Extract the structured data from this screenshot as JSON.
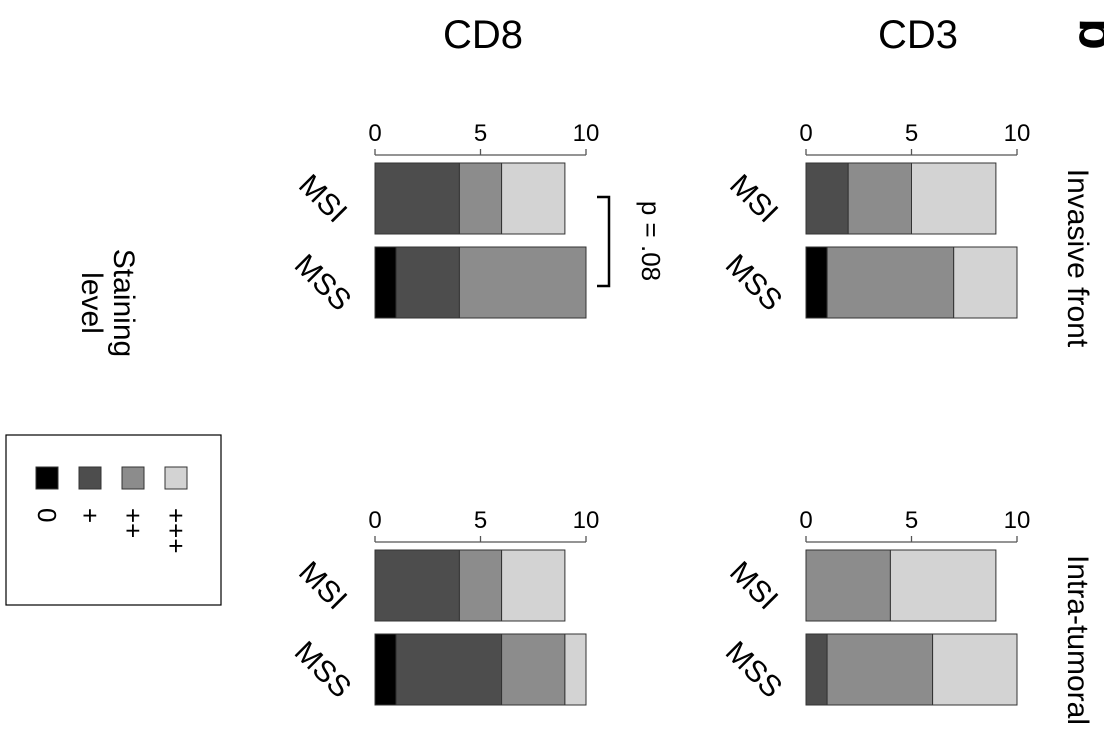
{
  "column_titles": [
    "CD8",
    "CD3"
  ],
  "row_titles": [
    "Invasive front",
    "Intra-tumoral"
  ],
  "panel_letter": "b",
  "legend": {
    "title": "Staining level",
    "title_lines": [
      "Staining",
      "level"
    ],
    "items": [
      {
        "label": "0",
        "color": "#000000"
      },
      {
        "label": "+",
        "color": "#4d4d4d"
      },
      {
        "label": "++",
        "color": "#8c8c8c"
      },
      {
        "label": "+++",
        "color": "#d3d3d3"
      }
    ]
  },
  "chart_data": [
    {
      "type": "bar",
      "stacked": true,
      "orientation": "horizontal",
      "marker": "CD8",
      "region": "Invasive front",
      "categories": [
        "MSI",
        "MSS"
      ],
      "xlim": [
        0,
        10
      ],
      "ticks": [
        0,
        5,
        10
      ],
      "series": [
        {
          "name": "0",
          "values": [
            0,
            1
          ]
        },
        {
          "name": "+",
          "values": [
            4,
            3
          ]
        },
        {
          "name": "++",
          "values": [
            2,
            6
          ]
        },
        {
          "name": "+++",
          "values": [
            3,
            0
          ]
        }
      ],
      "annotation": "p = .08"
    },
    {
      "type": "bar",
      "stacked": true,
      "orientation": "horizontal",
      "marker": "CD3",
      "region": "Invasive front",
      "categories": [
        "MSI",
        "MSS"
      ],
      "xlim": [
        0,
        10
      ],
      "ticks": [
        0,
        5,
        10
      ],
      "series": [
        {
          "name": "0",
          "values": [
            0,
            1
          ]
        },
        {
          "name": "+",
          "values": [
            2,
            0
          ]
        },
        {
          "name": "++",
          "values": [
            3,
            6
          ]
        },
        {
          "name": "+++",
          "values": [
            4,
            3
          ]
        }
      ]
    },
    {
      "type": "bar",
      "stacked": true,
      "orientation": "horizontal",
      "marker": "CD8",
      "region": "Intra-tumoral",
      "categories": [
        "MSI",
        "MSS"
      ],
      "xlim": [
        0,
        10
      ],
      "ticks": [
        0,
        5,
        10
      ],
      "series": [
        {
          "name": "0",
          "values": [
            0,
            1
          ]
        },
        {
          "name": "+",
          "values": [
            4,
            5
          ]
        },
        {
          "name": "++",
          "values": [
            2,
            3
          ]
        },
        {
          "name": "+++",
          "values": [
            3,
            1
          ]
        }
      ]
    },
    {
      "type": "bar",
      "stacked": true,
      "orientation": "horizontal",
      "marker": "CD3",
      "region": "Intra-tumoral",
      "categories": [
        "MSI",
        "MSS"
      ],
      "xlim": [
        0,
        10
      ],
      "ticks": [
        0,
        5,
        10
      ],
      "series": [
        {
          "name": "0",
          "values": [
            0,
            0
          ]
        },
        {
          "name": "+",
          "values": [
            0,
            1
          ]
        },
        {
          "name": "++",
          "values": [
            4,
            5
          ]
        },
        {
          "name": "+++",
          "values": [
            5,
            4
          ]
        }
      ]
    }
  ]
}
